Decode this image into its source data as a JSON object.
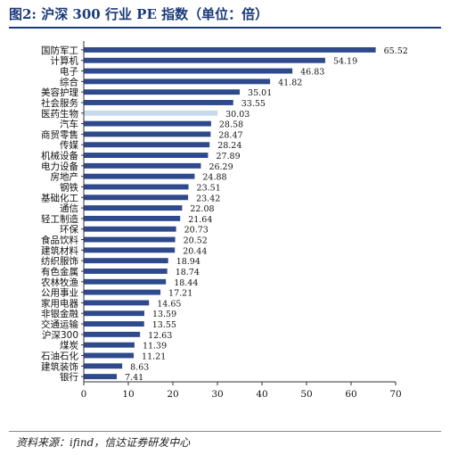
{
  "title": "图2: 沪深 300 行业 PE 指数（单位：倍）",
  "source": "资料来源：ifind，信达证券研发中心",
  "colors": {
    "bar": "#2e4a8c",
    "highlight": "#c9d9ec",
    "axis": "#333333",
    "title": "#1a3a7a"
  },
  "chart_data": {
    "type": "bar",
    "orientation": "horizontal",
    "categories": [
      "国防军工",
      "计算机",
      "电子",
      "综合",
      "美容护理",
      "社会服务",
      "医药生物",
      "汽车",
      "商贸零售",
      "传媒",
      "机械设备",
      "电力设备",
      "房地产",
      "钢铁",
      "基础化工",
      "通信",
      "轻工制造",
      "环保",
      "食品饮料",
      "建筑材料",
      "纺织服饰",
      "有色金属",
      "农林牧渔",
      "公用事业",
      "家用电器",
      "非银金融",
      "交通运输",
      "沪深300",
      "煤炭",
      "石油石化",
      "建筑装饰",
      "银行"
    ],
    "values": [
      65.52,
      54.19,
      46.83,
      41.82,
      35.01,
      33.55,
      30.03,
      28.58,
      28.47,
      28.24,
      27.89,
      26.29,
      24.88,
      23.51,
      23.42,
      22.08,
      21.64,
      20.73,
      20.52,
      20.44,
      18.94,
      18.74,
      18.44,
      17.21,
      14.65,
      13.59,
      13.55,
      12.63,
      11.39,
      11.21,
      8.63,
      7.41
    ],
    "value_labels": [
      "65.52",
      "54.19",
      "46.83",
      "41.82",
      "35.01",
      "33.55",
      "30.03",
      "28.58",
      "28.47",
      "28.24",
      "27.89",
      "26.29",
      "24.88",
      "23.51",
      "23.42",
      "22.08",
      "21.64",
      "20.73",
      "20.52",
      "20.44",
      "18.94",
      "18.74",
      "18.44",
      "17.21",
      "14.65",
      "13.59",
      "13.55",
      "12.63",
      "11.39",
      "11.21",
      "8.63",
      "7.41"
    ],
    "highlight_category": "医药生物",
    "xlim": [
      0,
      70
    ],
    "xticks": [
      "0",
      "10",
      "20",
      "30",
      "40",
      "50",
      "60",
      "70"
    ],
    "xlabel": "",
    "ylabel": "",
    "grid": false,
    "legend": "none"
  }
}
